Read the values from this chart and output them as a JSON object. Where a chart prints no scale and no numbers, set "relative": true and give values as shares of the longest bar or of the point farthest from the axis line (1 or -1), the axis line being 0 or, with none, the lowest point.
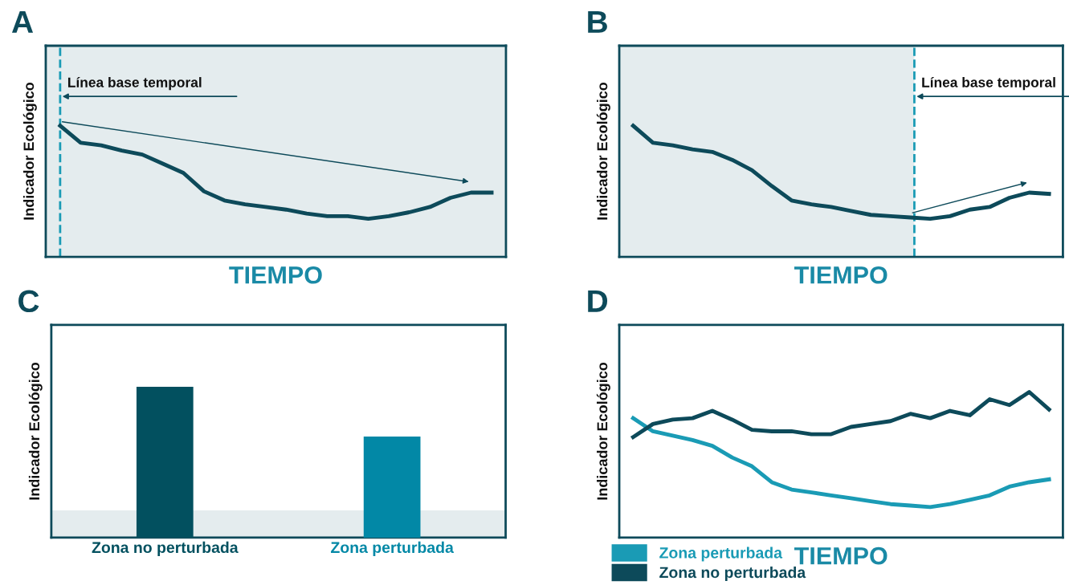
{
  "chart_data": [
    {
      "type": "line",
      "title": "A",
      "xlabel": "TIEMPO",
      "ylabel": "Indicador Ecológico",
      "relative": true,
      "tick_labels": false,
      "grid": false,
      "legend": false,
      "categories": [
        null,
        null,
        null,
        null,
        null,
        null,
        null,
        null,
        null,
        null,
        null,
        null,
        null,
        null,
        null,
        null,
        null,
        null,
        null,
        null,
        null,
        null
      ],
      "series": [
        {
          "color": "#0d4a5a",
          "values": [
            1.0,
            0.87,
            0.85,
            0.81,
            0.78,
            0.71,
            0.64,
            0.5,
            0.43,
            0.4,
            0.38,
            0.36,
            0.33,
            0.31,
            0.31,
            0.29,
            0.31,
            0.34,
            0.38,
            0.45,
            0.49,
            0.49
          ]
        }
      ],
      "annotations": [
        "Línea base temporal"
      ]
    },
    {
      "type": "line",
      "title": "B",
      "xlabel": "TIEMPO",
      "ylabel": "Indicador Ecológico",
      "relative": true,
      "tick_labels": false,
      "grid": false,
      "legend": false,
      "categories": [
        null,
        null,
        null,
        null,
        null,
        null,
        null,
        null,
        null,
        null,
        null,
        null,
        null,
        null,
        null,
        null,
        null,
        null,
        null,
        null,
        null,
        null
      ],
      "series": [
        {
          "color": "#0d4a5a",
          "values": [
            1.0,
            0.87,
            0.85,
            0.82,
            0.8,
            0.74,
            0.66,
            0.54,
            0.43,
            0.4,
            0.38,
            0.35,
            0.32,
            0.31,
            0.3,
            0.29,
            0.31,
            0.36,
            0.38,
            0.45,
            0.49,
            0.48
          ]
        }
      ],
      "annotations": [
        "Línea base temporal"
      ]
    },
    {
      "type": "bar",
      "title": "C",
      "ylabel": "Indicador Ecológico",
      "relative": true,
      "tick_labels": "x",
      "grid": false,
      "legend": false,
      "categories": [
        "Zona no perturbada",
        "Zona perturbada"
      ],
      "values": [
        1.0,
        0.67
      ],
      "colors": [
        "#02505f",
        "#0288a6"
      ],
      "bands": [
        {
          "axis": "y",
          "from": 0,
          "to": 0.18,
          "color": "#e4ecee"
        }
      ]
    },
    {
      "type": "line",
      "title": "D",
      "xlabel": "TIEMPO",
      "ylabel": "Indicador Ecológico",
      "relative": true,
      "tick_labels": false,
      "grid": false,
      "legend": "bottom left",
      "categories": [
        null,
        null,
        null,
        null,
        null,
        null,
        null,
        null,
        null,
        null,
        null,
        null,
        null,
        null,
        null,
        null,
        null,
        null,
        null,
        null,
        null,
        null
      ],
      "series": [
        {
          "name": "Zona perturbada",
          "color": "#1a9bb5",
          "values": [
            0.82,
            0.73,
            0.7,
            0.67,
            0.63,
            0.55,
            0.49,
            0.38,
            0.33,
            0.31,
            0.29,
            0.27,
            0.25,
            0.23,
            0.22,
            0.21,
            0.23,
            0.26,
            0.29,
            0.35,
            0.38,
            0.4
          ]
        },
        {
          "name": "Zona no perturbada",
          "color": "#0d4a5a",
          "values": [
            0.69,
            0.78,
            0.81,
            0.82,
            0.87,
            0.81,
            0.74,
            0.73,
            0.73,
            0.71,
            0.71,
            0.76,
            0.78,
            0.8,
            0.85,
            0.82,
            0.87,
            0.84,
            0.95,
            0.91,
            1.0,
            0.88
          ]
        }
      ]
    }
  ]
}
